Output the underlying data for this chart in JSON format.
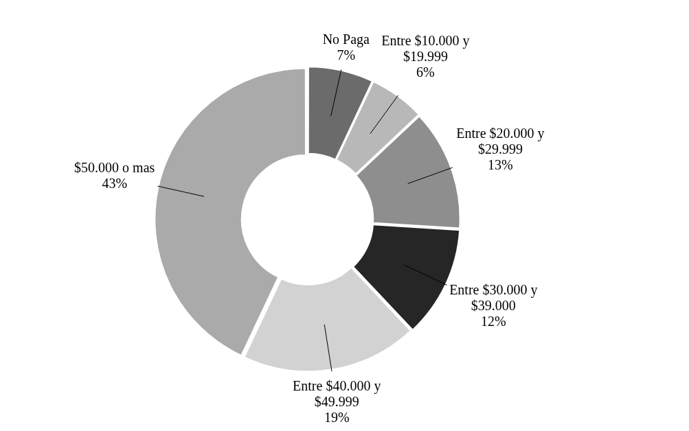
{
  "chart_data": {
    "type": "donut",
    "categories": [
      "No Paga",
      "Entre $10.000 y $19.999",
      "Entre $20.000 y $29.999",
      "Entre $30.000 y $39.000",
      "Entre $40.000 y $49.999",
      "$50.000 o mas"
    ],
    "values": [
      7,
      6,
      13,
      12,
      19,
      43
    ],
    "colors": [
      "#6b6b6b",
      "#b8b8b8",
      "#8e8e8e",
      "#262626",
      "#d2d2d2",
      "#aaaaaa"
    ],
    "value_labels": [
      "7%",
      "6%",
      "13%",
      "12%",
      "19%",
      "43%"
    ],
    "legend": false
  }
}
